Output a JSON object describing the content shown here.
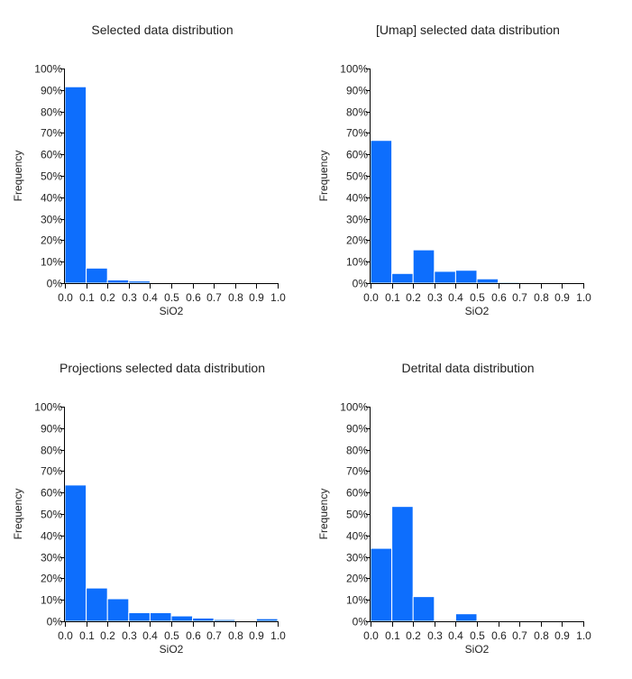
{
  "bar_color": "#0d6efd",
  "chart_data": [
    {
      "type": "bar",
      "title": "Selected data distribution",
      "xlabel": "SiO2",
      "ylabel": "Frequency",
      "x_ticks": [
        "0.0",
        "0.1",
        "0.2",
        "0.3",
        "0.4",
        "0.5",
        "0.6",
        "0.7",
        "0.8",
        "0.9",
        "1.0"
      ],
      "y_ticks": [
        "0%",
        "10%",
        "20%",
        "30%",
        "40%",
        "50%",
        "60%",
        "70%",
        "80%",
        "90%",
        "100%"
      ],
      "xlim": [
        0,
        1
      ],
      "ylim": [
        0,
        100
      ],
      "bins": [
        [
          0.0,
          0.1
        ],
        [
          0.1,
          0.2
        ],
        [
          0.2,
          0.3
        ],
        [
          0.3,
          0.4
        ],
        [
          0.4,
          0.5
        ],
        [
          0.5,
          0.6
        ],
        [
          0.6,
          0.7
        ],
        [
          0.7,
          0.8
        ],
        [
          0.8,
          0.9
        ],
        [
          0.9,
          1.0
        ]
      ],
      "values": [
        91.5,
        7.0,
        1.5,
        1.0,
        0,
        0,
        0,
        0,
        0,
        0
      ],
      "grid": false
    },
    {
      "type": "bar",
      "title": "[Umap] selected data distribution",
      "xlabel": "SiO2",
      "ylabel": "Frequency",
      "x_ticks": [
        "0.0",
        "0.1",
        "0.2",
        "0.3",
        "0.4",
        "0.5",
        "0.6",
        "0.7",
        "0.8",
        "0.9",
        "1.0"
      ],
      "y_ticks": [
        "0%",
        "10%",
        "20%",
        "30%",
        "40%",
        "50%",
        "60%",
        "70%",
        "80%",
        "90%",
        "100%"
      ],
      "xlim": [
        0,
        1
      ],
      "ylim": [
        0,
        100
      ],
      "bins": [
        [
          0.0,
          0.1
        ],
        [
          0.1,
          0.2
        ],
        [
          0.2,
          0.3
        ],
        [
          0.3,
          0.4
        ],
        [
          0.4,
          0.5
        ],
        [
          0.5,
          0.6
        ],
        [
          0.6,
          0.7
        ],
        [
          0.7,
          0.8
        ],
        [
          0.8,
          0.9
        ],
        [
          0.9,
          1.0
        ]
      ],
      "values": [
        66.5,
        4.5,
        15.5,
        5.5,
        6.0,
        2.0,
        0.5,
        0,
        0.3,
        0.3
      ],
      "grid": false
    },
    {
      "type": "bar",
      "title": "Projections selected data distribution",
      "xlabel": "SiO2",
      "ylabel": "Frequency",
      "x_ticks": [
        "0.0",
        "0.1",
        "0.2",
        "0.3",
        "0.4",
        "0.5",
        "0.6",
        "0.7",
        "0.8",
        "0.9",
        "1.0"
      ],
      "y_ticks": [
        "0%",
        "10%",
        "20%",
        "30%",
        "40%",
        "50%",
        "60%",
        "70%",
        "80%",
        "90%",
        "100%"
      ],
      "xlim": [
        0,
        1
      ],
      "ylim": [
        0,
        100
      ],
      "bins": [
        [
          0.0,
          0.1
        ],
        [
          0.1,
          0.2
        ],
        [
          0.2,
          0.3
        ],
        [
          0.3,
          0.4
        ],
        [
          0.4,
          0.5
        ],
        [
          0.5,
          0.6
        ],
        [
          0.6,
          0.7
        ],
        [
          0.7,
          0.8
        ],
        [
          0.8,
          0.9
        ],
        [
          0.9,
          1.0
        ]
      ],
      "values": [
        63.5,
        15.5,
        10.5,
        4.0,
        4.0,
        2.5,
        1.5,
        0.8,
        0,
        1.2
      ],
      "grid": false
    },
    {
      "type": "bar",
      "title": "Detrital data distribution",
      "xlabel": "SiO2",
      "ylabel": "Frequency",
      "x_ticks": [
        "0.0",
        "0.1",
        "0.2",
        "0.3",
        "0.4",
        "0.5",
        "0.6",
        "0.7",
        "0.8",
        "0.9",
        "1.0"
      ],
      "y_ticks": [
        "0%",
        "10%",
        "20%",
        "30%",
        "40%",
        "50%",
        "60%",
        "70%",
        "80%",
        "90%",
        "100%"
      ],
      "xlim": [
        0,
        1
      ],
      "ylim": [
        0,
        100
      ],
      "bins": [
        [
          0.0,
          0.1
        ],
        [
          0.1,
          0.2
        ],
        [
          0.2,
          0.3
        ],
        [
          0.3,
          0.4
        ],
        [
          0.4,
          0.5
        ],
        [
          0.5,
          0.6
        ],
        [
          0.6,
          0.7
        ],
        [
          0.7,
          0.8
        ],
        [
          0.8,
          0.9
        ],
        [
          0.9,
          1.0
        ]
      ],
      "values": [
        34.0,
        53.5,
        11.5,
        0,
        3.5,
        0,
        0,
        0,
        0,
        0
      ],
      "grid": false
    }
  ]
}
